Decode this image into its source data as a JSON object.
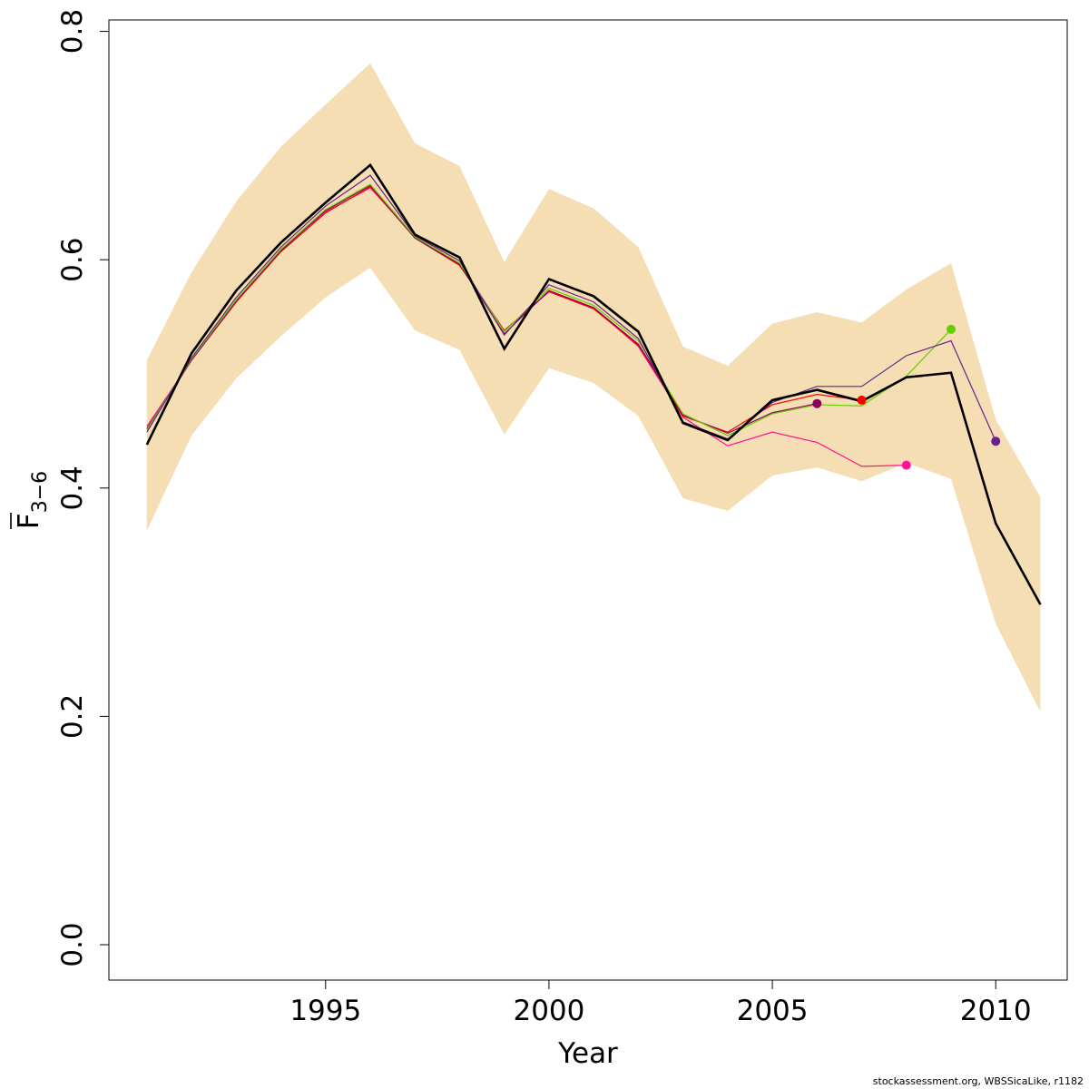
{
  "chart_data": {
    "type": "line",
    "xlabel": "Year",
    "ylabel": {
      "main": "F",
      "sub": "3−6"
    },
    "xlim": [
      1990.15,
      2011.6
    ],
    "ylim": [
      -0.031,
      0.81
    ],
    "xticks": [
      1995,
      2000,
      2005,
      2010
    ],
    "yticks": [
      0.0,
      0.2,
      0.4,
      0.6,
      0.8
    ],
    "ytick_labels": [
      "0.0",
      "0.2",
      "0.4",
      "0.6",
      "0.8"
    ],
    "grid": false,
    "band": {
      "color": "#f5deb3",
      "x": [
        1991,
        1992,
        1993,
        1994,
        1995,
        1996,
        1997,
        1998,
        1999,
        2000,
        2001,
        2002,
        2003,
        2004,
        2005,
        2006,
        2007,
        2008,
        2009,
        2010,
        2011
      ],
      "upper": [
        0.512,
        0.589,
        0.651,
        0.699,
        0.736,
        0.772,
        0.702,
        0.682,
        0.598,
        0.662,
        0.645,
        0.611,
        0.524,
        0.507,
        0.544,
        0.554,
        0.545,
        0.574,
        0.597,
        0.46,
        0.392
      ],
      "lower": [
        0.363,
        0.446,
        0.496,
        0.533,
        0.567,
        0.593,
        0.538,
        0.521,
        0.447,
        0.505,
        0.492,
        0.463,
        0.391,
        0.38,
        0.411,
        0.418,
        0.406,
        0.422,
        0.408,
        0.281,
        0.204
      ]
    },
    "main_series": {
      "color": "#000000",
      "x": [
        1991,
        1992,
        1993,
        1994,
        1995,
        1996,
        1997,
        1998,
        1999,
        2000,
        2001,
        2002,
        2003,
        2004,
        2005,
        2006,
        2007,
        2008,
        2009,
        2010,
        2011
      ],
      "values": [
        0.438,
        0.518,
        0.573,
        0.615,
        0.65,
        0.683,
        0.622,
        0.602,
        0.522,
        0.583,
        0.568,
        0.537,
        0.457,
        0.442,
        0.477,
        0.486,
        0.476,
        0.497,
        0.501,
        0.369,
        0.298
      ]
    },
    "retro_series": [
      {
        "color": "#ff1493",
        "x": [
          1991,
          1992,
          1993,
          1994,
          1995,
          1996,
          1997,
          1998,
          1999,
          2000,
          2001,
          2002,
          2003,
          2004,
          2005,
          2006,
          2007,
          2008
        ],
        "values": [
          0.454,
          0.512,
          0.563,
          0.609,
          0.642,
          0.663,
          0.62,
          0.596,
          0.538,
          0.572,
          0.558,
          0.524,
          0.462,
          0.437,
          0.449,
          0.44,
          0.419,
          0.42
        ]
      },
      {
        "color": "#ff0000",
        "x": [
          1991,
          1992,
          1993,
          1994,
          1995,
          1996,
          1997,
          1998,
          1999,
          2000,
          2001,
          2002,
          2003,
          2004,
          2005,
          2006,
          2007
        ],
        "values": [
          0.451,
          0.512,
          0.563,
          0.607,
          0.641,
          0.664,
          0.619,
          0.595,
          0.538,
          0.572,
          0.557,
          0.525,
          0.463,
          0.449,
          0.473,
          0.482,
          0.477
        ]
      },
      {
        "color": "#8b0057",
        "x": [
          1991,
          1992,
          1993,
          1994,
          1995,
          1996,
          1997,
          1998,
          1999,
          2000,
          2001,
          2002,
          2003,
          2004,
          2005,
          2006
        ],
        "values": [
          0.452,
          0.512,
          0.564,
          0.608,
          0.643,
          0.665,
          0.619,
          0.596,
          0.535,
          0.573,
          0.558,
          0.526,
          0.464,
          0.448,
          0.466,
          0.474
        ]
      },
      {
        "color": "#66cd00",
        "x": [
          1991,
          1992,
          1993,
          1994,
          1995,
          1996,
          1997,
          1998,
          1999,
          2000,
          2001,
          2002,
          2003,
          2004,
          2005,
          2006,
          2007,
          2008,
          2009
        ],
        "values": [
          0.451,
          0.513,
          0.565,
          0.609,
          0.644,
          0.666,
          0.62,
          0.597,
          0.537,
          0.575,
          0.56,
          0.529,
          0.465,
          0.446,
          0.465,
          0.473,
          0.472,
          0.498,
          0.539
        ]
      },
      {
        "color": "#68228b",
        "x": [
          1991,
          1992,
          1993,
          1994,
          1995,
          1996,
          1997,
          1998,
          1999,
          2000,
          2001,
          2002,
          2003,
          2004,
          2005,
          2006,
          2007,
          2008,
          2009,
          2010
        ],
        "values": [
          0.449,
          0.514,
          0.567,
          0.611,
          0.647,
          0.674,
          0.621,
          0.599,
          0.534,
          0.578,
          0.563,
          0.531,
          0.458,
          0.443,
          0.475,
          0.489,
          0.489,
          0.516,
          0.529,
          0.441
        ]
      }
    ]
  },
  "credit": "stockassessment.org, WBSSicaLike, r1182"
}
